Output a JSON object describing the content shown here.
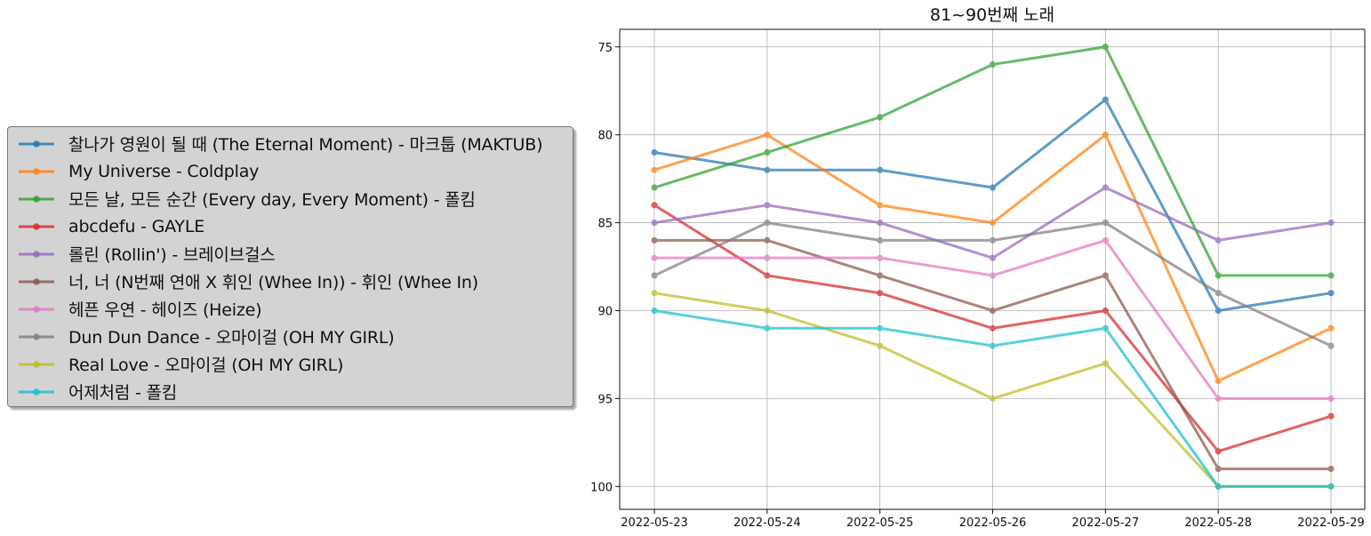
{
  "chart_data": {
    "type": "line",
    "title": "81~90번째 노래",
    "xlabel": "",
    "ylabel": "",
    "x": [
      "2022-05-23",
      "2022-05-24",
      "2022-05-25",
      "2022-05-26",
      "2022-05-27",
      "2022-05-28",
      "2022-05-29"
    ],
    "ylim": [
      101.3,
      74.0
    ],
    "y_inverted": true,
    "yticks": [
      75,
      80,
      85,
      90,
      95,
      100
    ],
    "grid": true,
    "legend_position": "left-outside",
    "series": [
      {
        "name": "찰나가 영원이 될 때 (The Eternal Moment) - 마크툽 (MAKTUB)",
        "color": "#1f77b4",
        "values": [
          81,
          82,
          82,
          83,
          78,
          90,
          89
        ]
      },
      {
        "name": "My Universe - Coldplay",
        "color": "#ff7f0e",
        "values": [
          82,
          80,
          84,
          85,
          80,
          94,
          91
        ]
      },
      {
        "name": "모든 날, 모든 순간 (Every day, Every Moment) - 폴킴",
        "color": "#2ca02c",
        "values": [
          83,
          81,
          79,
          76,
          75,
          88,
          88
        ]
      },
      {
        "name": "abcdefu - GAYLE",
        "color": "#d62728",
        "values": [
          84,
          88,
          89,
          91,
          90,
          98,
          96
        ]
      },
      {
        "name": "롤린 (Rollin') - 브레이브걸스",
        "color": "#9467bd",
        "values": [
          85,
          84,
          85,
          87,
          83,
          86,
          85
        ]
      },
      {
        "name": "너, 너 (N번째 연애 X 휘인 (Whee In)) - 휘인 (Whee In)",
        "color": "#8c564b",
        "values": [
          86,
          86,
          88,
          90,
          88,
          99,
          99
        ]
      },
      {
        "name": "헤픈 우연 - 헤이즈 (Heize)",
        "color": "#e377c2",
        "values": [
          87,
          87,
          87,
          88,
          86,
          95,
          95
        ]
      },
      {
        "name": "Dun Dun Dance - 오마이걸 (OH MY GIRL)",
        "color": "#7f7f7f",
        "values": [
          88,
          85,
          86,
          86,
          85,
          89,
          92
        ]
      },
      {
        "name": "Real Love - 오마이걸 (OH MY GIRL)",
        "color": "#bcbd22",
        "values": [
          89,
          90,
          92,
          95,
          93,
          100,
          100
        ]
      },
      {
        "name": "어제처럼 - 폴킴",
        "color": "#17becf",
        "values": [
          90,
          91,
          91,
          92,
          91,
          100,
          100
        ]
      }
    ]
  }
}
